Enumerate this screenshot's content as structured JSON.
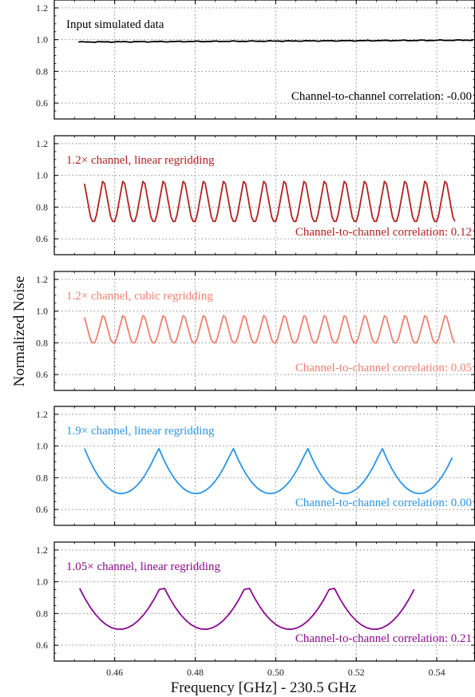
{
  "figure": {
    "xlabel": "Frequency [GHz] - 230.5 GHz",
    "ylabel": "Normalized Noise"
  },
  "chart_data": [
    {
      "type": "line",
      "panel_label": "Input simulated data",
      "correlation_label": "Channel-to-channel correlation: -0.00",
      "color": "#000000",
      "xlim": [
        0.445,
        0.5495
      ],
      "ylim": [
        0.5,
        1.25
      ],
      "yticks": [
        "0.6",
        "0.8",
        "1.0",
        "1.2"
      ],
      "xticks": [
        "0.46",
        "0.48",
        "0.50",
        "0.52",
        "0.54"
      ],
      "show_xtick_labels": false,
      "grid": true,
      "pattern": {
        "kind": "flat",
        "x_start": 0.451,
        "x_end": 0.549,
        "y_start": 0.985,
        "y_end": 0.997
      }
    },
    {
      "type": "line",
      "panel_label": "1.2× channel, linear regridding",
      "correlation_label": "Channel-to-channel correlation: 0.12",
      "color": "#b22222",
      "xlim": [
        0.445,
        0.5495
      ],
      "ylim": [
        0.5,
        1.25
      ],
      "yticks": [
        "0.6",
        "0.8",
        "1.0",
        "1.2"
      ],
      "xticks": [
        "0.46",
        "0.48",
        "0.50",
        "0.52",
        "0.54"
      ],
      "show_xtick_labels": false,
      "grid": true,
      "pattern": {
        "kind": "zigzag",
        "x_start": 0.4525,
        "x_end": 0.5445,
        "period": 0.005,
        "peak_x": 0.4572,
        "y_min": 0.71,
        "y_max": 0.99,
        "flat_frac": 0.2
      }
    },
    {
      "type": "line",
      "panel_label": "1.2× channel, cubic regridding",
      "correlation_label": "Channel-to-channel correlation: 0.05",
      "color": "#f08070",
      "xlim": [
        0.445,
        0.5495
      ],
      "ylim": [
        0.5,
        1.25
      ],
      "yticks": [
        "0.6",
        "0.8",
        "1.0",
        "1.2"
      ],
      "xticks": [
        "0.46",
        "0.48",
        "0.50",
        "0.52",
        "0.54"
      ],
      "show_xtick_labels": false,
      "grid": true,
      "pattern": {
        "kind": "zigzag",
        "x_start": 0.4525,
        "x_end": 0.5445,
        "period": 0.005,
        "peak_x": 0.4572,
        "y_min": 0.8,
        "y_max": 0.99,
        "flat_frac": 0.2
      }
    },
    {
      "type": "line",
      "panel_label": "1.9× channel, linear regridding",
      "correlation_label": "Channel-to-channel correlation: 0.00",
      "color": "#2b95e8",
      "xlim": [
        0.445,
        0.5495
      ],
      "ylim": [
        0.5,
        1.25
      ],
      "yticks": [
        "0.6",
        "0.8",
        "1.0",
        "1.2"
      ],
      "xticks": [
        "0.46",
        "0.48",
        "0.50",
        "0.52",
        "0.54"
      ],
      "show_xtick_labels": false,
      "grid": true,
      "pattern": {
        "kind": "arcs",
        "x_start": 0.4525,
        "x_end": 0.5445,
        "period": 0.0185,
        "peak_x": 0.4709,
        "y_min": 0.7,
        "y_max": 0.99
      }
    },
    {
      "type": "line",
      "panel_label": "1.05× channel, linear regridding",
      "correlation_label": "Channel-to-channel correlation: 0.21",
      "color": "#8b0a8e",
      "xlim": [
        0.445,
        0.5495
      ],
      "ylim": [
        0.5,
        1.25
      ],
      "yticks": [
        "0.6",
        "0.8",
        "1.0",
        "1.2"
      ],
      "xticks": [
        "0.46",
        "0.48",
        "0.50",
        "0.52",
        "0.54"
      ],
      "show_xtick_labels": true,
      "grid": true,
      "pattern": {
        "kind": "arcs",
        "x_start": 0.4513,
        "x_end": 0.5345,
        "period": 0.0211,
        "peak_x": 0.4718,
        "y_min": 0.7,
        "y_max": 0.99
      }
    }
  ]
}
